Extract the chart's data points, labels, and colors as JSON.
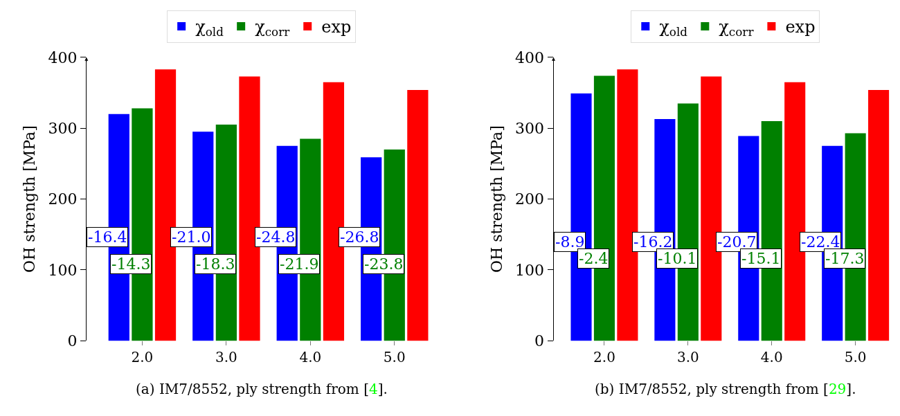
{
  "chart_data": [
    {
      "type": "bar",
      "categories": [
        "2.0",
        "3.0",
        "4.0",
        "5.0"
      ],
      "ylabel": "OH strength [MPa]",
      "ylim": [
        0,
        400
      ],
      "yticks": [
        0,
        100,
        200,
        300,
        400
      ],
      "legend": "top",
      "series": [
        {
          "name": "χ$_{old}$",
          "color": "#0000ff",
          "values": [
            320,
            295,
            275,
            259
          ]
        },
        {
          "name": "χ$_{corr}$",
          "color": "#008000",
          "values": [
            328,
            305,
            285,
            270
          ]
        },
        {
          "name": "exp",
          "color": "#ff0000",
          "values": [
            383,
            373,
            365,
            354
          ]
        }
      ],
      "annotations": [
        "(a) IM7/8552, ply strength from [4].",
        "-16.4",
        "-21.0",
        "-24.8",
        "-26.8",
        "-14.3",
        "-18.3",
        "-21.9",
        "-23.8"
      ]
    },
    {
      "type": "bar",
      "categories": [
        "2.0",
        "3.0",
        "4.0",
        "5.0"
      ],
      "ylabel": "OH strength [MPa]",
      "ylim": [
        0,
        400
      ],
      "yticks": [
        0,
        100,
        200,
        300,
        400
      ],
      "legend": "top",
      "series": [
        {
          "name": "χ$_{old}$",
          "color": "#0000ff",
          "values": [
            349,
            313,
            289,
            275
          ]
        },
        {
          "name": "χ$_{corr}$",
          "color": "#008000",
          "values": [
            374,
            335,
            310,
            293
          ]
        },
        {
          "name": "exp",
          "color": "#ff0000",
          "values": [
            383,
            373,
            365,
            354
          ]
        }
      ],
      "annotations": [
        "(b) IM7/8552, ply strength from [29].",
        "-8.9",
        "-16.2",
        "-20.7",
        "-22.4",
        "-2.4",
        "-10.1",
        "-15.1",
        "-17.3"
      ]
    }
  ]
}
